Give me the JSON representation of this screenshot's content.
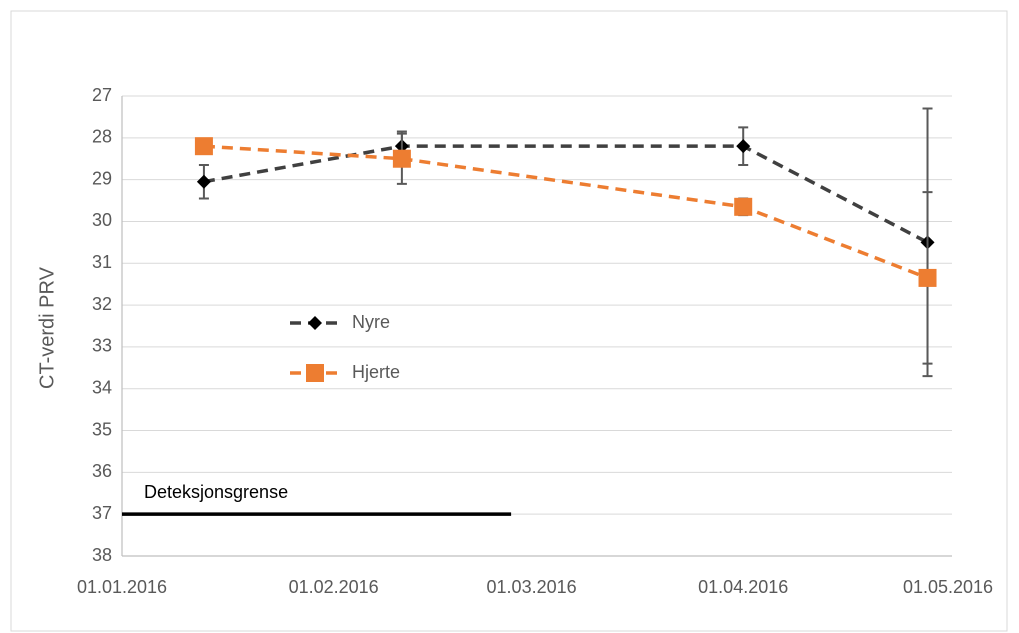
{
  "chart_data": {
    "type": "line",
    "ylabel": "CT-verdi PRV",
    "ylim": [
      27,
      38
    ],
    "yticks": [
      27,
      28,
      29,
      30,
      31,
      32,
      33,
      34,
      35,
      36,
      37,
      38
    ],
    "y_inverted": true,
    "xlim": [
      "01.01.2016",
      "01.05.2016"
    ],
    "xticks": [
      "01.01.2016",
      "01.02.2016",
      "01.03.2016",
      "01.04.2016",
      "01.05.2016"
    ],
    "x": [
      "13.01.2016",
      "11.02.2016",
      "01.04.2016",
      "28.04.2016"
    ],
    "grid": true,
    "legend": "left",
    "series": [
      {
        "name": "Nyre",
        "color": "#404040",
        "marker": "diamond",
        "values": [
          29.05,
          28.2,
          28.2,
          30.5
        ],
        "errors": [
          0.4,
          0.35,
          0.45,
          3.2
        ]
      },
      {
        "name": "Hjerte",
        "color": "#ed7d31",
        "marker": "square",
        "values": [
          28.2,
          28.5,
          29.65,
          31.35
        ],
        "errors": [
          0.1,
          0.6,
          0.2,
          2.05
        ]
      }
    ],
    "annotations": [
      {
        "text": "Deteksjonsgrense",
        "y": 37,
        "x": [
          "01.01.2016",
          "27.02.2016"
        ],
        "color": "#000000"
      }
    ]
  }
}
